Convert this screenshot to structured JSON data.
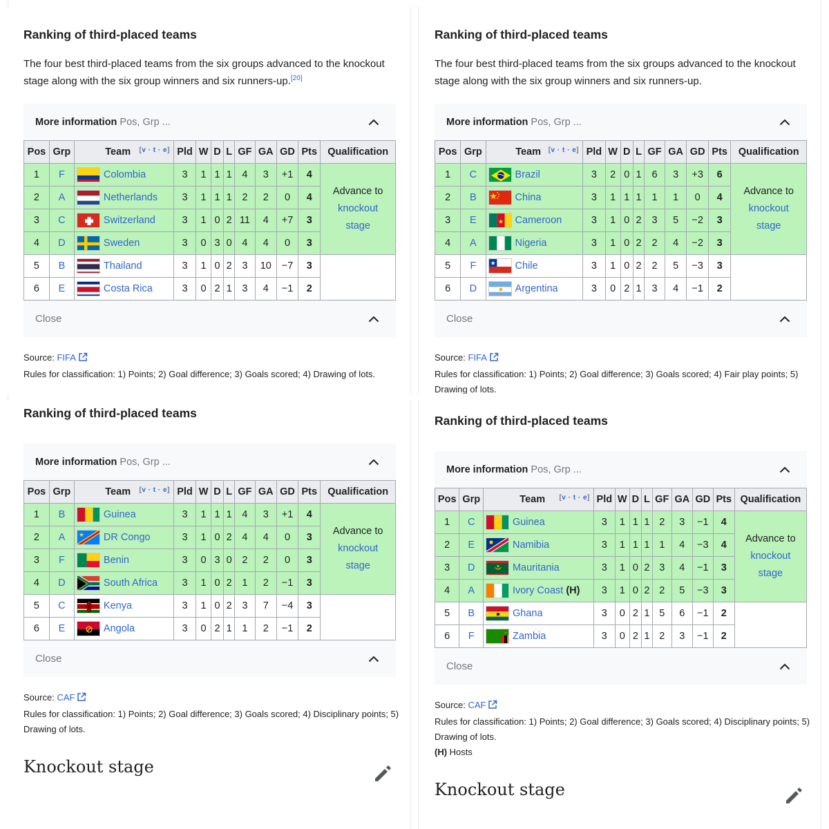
{
  "panels": [
    {
      "title": "Ranking of third-placed teams",
      "intro": "The four best third-placed teams from the six groups advanced to the knockout stage along with the six group winners and six runners-up.",
      "intro_ref": "[20]",
      "more_info": "More information",
      "more_info_sub": "Pos, Grp ...",
      "headers": [
        "Pos",
        "Grp",
        "Team",
        "Pld",
        "W",
        "D",
        "L",
        "GF",
        "GA",
        "GD",
        "Pts",
        "Qualification"
      ],
      "vte": "v · t · e",
      "qualification": [
        "Advance to",
        "knockout",
        "stage"
      ],
      "rows": [
        {
          "pos": "1",
          "grp": "F",
          "team": "Colombia",
          "flag": "colombia",
          "pld": "3",
          "w": "1",
          "d": "1",
          "l": "1",
          "gf": "4",
          "ga": "3",
          "gd": "+1",
          "pts": "4",
          "host": ""
        },
        {
          "pos": "2",
          "grp": "A",
          "team": "Netherlands",
          "flag": "netherlands",
          "pld": "3",
          "w": "1",
          "d": "1",
          "l": "1",
          "gf": "2",
          "ga": "2",
          "gd": "0",
          "pts": "4",
          "host": ""
        },
        {
          "pos": "3",
          "grp": "C",
          "team": "Switzerland",
          "flag": "switzerland",
          "pld": "3",
          "w": "1",
          "d": "0",
          "l": "2",
          "gf": "11",
          "ga": "4",
          "gd": "+7",
          "pts": "3",
          "host": ""
        },
        {
          "pos": "4",
          "grp": "D",
          "team": "Sweden",
          "flag": "sweden",
          "pld": "3",
          "w": "0",
          "d": "3",
          "l": "0",
          "gf": "4",
          "ga": "4",
          "gd": "0",
          "pts": "3",
          "host": ""
        },
        {
          "pos": "5",
          "grp": "B",
          "team": "Thailand",
          "flag": "thailand",
          "pld": "3",
          "w": "1",
          "d": "0",
          "l": "2",
          "gf": "3",
          "ga": "10",
          "gd": "−7",
          "pts": "3",
          "host": ""
        },
        {
          "pos": "6",
          "grp": "E",
          "team": "Costa Rica",
          "flag": "costarica",
          "pld": "3",
          "w": "0",
          "d": "2",
          "l": "1",
          "gf": "3",
          "ga": "4",
          "gd": "−1",
          "pts": "2",
          "host": ""
        }
      ],
      "close": "Close",
      "source_label": "Source:",
      "source_link": "FIFA",
      "rules": "Rules for classification: 1) Points; 2) Goal difference; 3) Goals scored; 4) Drawing of lots.",
      "hosts_note_key": "",
      "hosts_note": ""
    },
    {
      "title": "Ranking of third-placed teams",
      "intro": "The four best third-placed teams from the six groups advanced to the knockout stage along with the six group winners and six runners-up.",
      "intro_ref": "",
      "more_info": "More information",
      "more_info_sub": "Pos, Grp ...",
      "headers": [
        "Pos",
        "Grp",
        "Team",
        "Pld",
        "W",
        "D",
        "L",
        "GF",
        "GA",
        "GD",
        "Pts",
        "Qualification"
      ],
      "vte": "v · t · e",
      "qualification": [
        "Advance to",
        "knockout",
        "stage"
      ],
      "rows": [
        {
          "pos": "1",
          "grp": "C",
          "team": "Brazil",
          "flag": "brazil",
          "pld": "3",
          "w": "2",
          "d": "0",
          "l": "1",
          "gf": "6",
          "ga": "3",
          "gd": "+3",
          "pts": "6",
          "host": ""
        },
        {
          "pos": "2",
          "grp": "B",
          "team": "China",
          "flag": "china",
          "pld": "3",
          "w": "1",
          "d": "1",
          "l": "1",
          "gf": "1",
          "ga": "1",
          "gd": "0",
          "pts": "4",
          "host": ""
        },
        {
          "pos": "3",
          "grp": "E",
          "team": "Cameroon",
          "flag": "cameroon",
          "pld": "3",
          "w": "1",
          "d": "0",
          "l": "2",
          "gf": "3",
          "ga": "5",
          "gd": "−2",
          "pts": "3",
          "host": ""
        },
        {
          "pos": "4",
          "grp": "A",
          "team": "Nigeria",
          "flag": "nigeria",
          "pld": "3",
          "w": "1",
          "d": "0",
          "l": "2",
          "gf": "2",
          "ga": "4",
          "gd": "−2",
          "pts": "3",
          "host": ""
        },
        {
          "pos": "5",
          "grp": "F",
          "team": "Chile",
          "flag": "chile",
          "pld": "3",
          "w": "1",
          "d": "0",
          "l": "2",
          "gf": "2",
          "ga": "5",
          "gd": "−3",
          "pts": "3",
          "host": ""
        },
        {
          "pos": "6",
          "grp": "D",
          "team": "Argentina",
          "flag": "argentina",
          "pld": "3",
          "w": "0",
          "d": "2",
          "l": "1",
          "gf": "3",
          "ga": "4",
          "gd": "−1",
          "pts": "2",
          "host": ""
        }
      ],
      "close": "Close",
      "source_label": "Source:",
      "source_link": "FIFA",
      "rules": "Rules for classification: 1) Points; 2) Goal difference; 3) Goals scored; 4) Fair play points; 5) Drawing of lots.",
      "hosts_note_key": "",
      "hosts_note": ""
    },
    {
      "title": "Ranking of third-placed teams",
      "intro": "",
      "intro_ref": "",
      "more_info": "More information",
      "more_info_sub": "Pos, Grp ...",
      "headers": [
        "Pos",
        "Grp",
        "Team",
        "Pld",
        "W",
        "D",
        "L",
        "GF",
        "GA",
        "GD",
        "Pts",
        "Qualification"
      ],
      "vte": "v · t · e",
      "qualification": [
        "Advance to",
        "knockout",
        "stage"
      ],
      "rows": [
        {
          "pos": "1",
          "grp": "B",
          "team": "Guinea",
          "flag": "guinea",
          "pld": "3",
          "w": "1",
          "d": "1",
          "l": "1",
          "gf": "4",
          "ga": "3",
          "gd": "+1",
          "pts": "4",
          "host": ""
        },
        {
          "pos": "2",
          "grp": "A",
          "team": "DR Congo",
          "flag": "drcongo",
          "pld": "3",
          "w": "1",
          "d": "0",
          "l": "2",
          "gf": "4",
          "ga": "4",
          "gd": "0",
          "pts": "3",
          "host": ""
        },
        {
          "pos": "3",
          "grp": "F",
          "team": "Benin",
          "flag": "benin",
          "pld": "3",
          "w": "0",
          "d": "3",
          "l": "0",
          "gf": "2",
          "ga": "2",
          "gd": "0",
          "pts": "3",
          "host": ""
        },
        {
          "pos": "4",
          "grp": "D",
          "team": "South Africa",
          "flag": "southafrica",
          "pld": "3",
          "w": "1",
          "d": "0",
          "l": "2",
          "gf": "1",
          "ga": "2",
          "gd": "−1",
          "pts": "3",
          "host": ""
        },
        {
          "pos": "5",
          "grp": "C",
          "team": "Kenya",
          "flag": "kenya",
          "pld": "3",
          "w": "1",
          "d": "0",
          "l": "2",
          "gf": "3",
          "ga": "7",
          "gd": "−4",
          "pts": "3",
          "host": ""
        },
        {
          "pos": "6",
          "grp": "E",
          "team": "Angola",
          "flag": "angola",
          "pld": "3",
          "w": "0",
          "d": "2",
          "l": "1",
          "gf": "1",
          "ga": "2",
          "gd": "−1",
          "pts": "2",
          "host": ""
        }
      ],
      "close": "Close",
      "source_label": "Source:",
      "source_link": "CAF",
      "rules": "Rules for classification: 1) Points; 2) Goal difference; 3) Goals scored; 4) Disciplinary points; 5) Drawing of lots.",
      "hosts_note_key": "",
      "hosts_note": "",
      "knockout": "Knockout stage"
    },
    {
      "title": "Ranking of third-placed teams",
      "intro": "",
      "intro_ref": "",
      "more_info": "More information",
      "more_info_sub": "Pos, Grp ...",
      "headers": [
        "Pos",
        "Grp",
        "Team",
        "Pld",
        "W",
        "D",
        "L",
        "GF",
        "GA",
        "GD",
        "Pts",
        "Qualification"
      ],
      "vte": "v · t · e",
      "qualification": [
        "Advance to",
        "knockout",
        "stage"
      ],
      "rows": [
        {
          "pos": "1",
          "grp": "C",
          "team": "Guinea",
          "flag": "guinea",
          "pld": "3",
          "w": "1",
          "d": "1",
          "l": "1",
          "gf": "2",
          "ga": "3",
          "gd": "−1",
          "pts": "4",
          "host": ""
        },
        {
          "pos": "2",
          "grp": "E",
          "team": "Namibia",
          "flag": "namibia",
          "pld": "3",
          "w": "1",
          "d": "1",
          "l": "1",
          "gf": "1",
          "ga": "4",
          "gd": "−3",
          "pts": "4",
          "host": ""
        },
        {
          "pos": "3",
          "grp": "D",
          "team": "Mauritania",
          "flag": "mauritania",
          "pld": "3",
          "w": "1",
          "d": "0",
          "l": "2",
          "gf": "3",
          "ga": "4",
          "gd": "−1",
          "pts": "3",
          "host": ""
        },
        {
          "pos": "4",
          "grp": "A",
          "team": "Ivory Coast",
          "flag": "ivorycoast",
          "pld": "3",
          "w": "1",
          "d": "0",
          "l": "2",
          "gf": "2",
          "ga": "5",
          "gd": "−3",
          "pts": "3",
          "host": "(H)"
        },
        {
          "pos": "5",
          "grp": "B",
          "team": "Ghana",
          "flag": "ghana",
          "pld": "3",
          "w": "0",
          "d": "2",
          "l": "1",
          "gf": "5",
          "ga": "6",
          "gd": "−1",
          "pts": "2",
          "host": ""
        },
        {
          "pos": "6",
          "grp": "F",
          "team": "Zambia",
          "flag": "zambia",
          "pld": "3",
          "w": "0",
          "d": "2",
          "l": "1",
          "gf": "2",
          "ga": "3",
          "gd": "−1",
          "pts": "2",
          "host": ""
        }
      ],
      "close": "Close",
      "source_label": "Source:",
      "source_link": "CAF",
      "rules": "Rules for classification: 1) Points; 2) Goal difference; 3) Goals scored; 4) Disciplinary points; 5) Drawing of lots.",
      "hosts_note_key": "(H)",
      "hosts_note": "Hosts",
      "knockout": "Knockout stage"
    }
  ],
  "colors": {
    "advance": "#bbf3bb",
    "header": "#eaecf0",
    "link": "#3366cc",
    "border": "#a2a9b1",
    "box": "#f8f9fa"
  },
  "icons": [
    "chevron-up-icon",
    "external-link-icon",
    "pencil-icon"
  ]
}
